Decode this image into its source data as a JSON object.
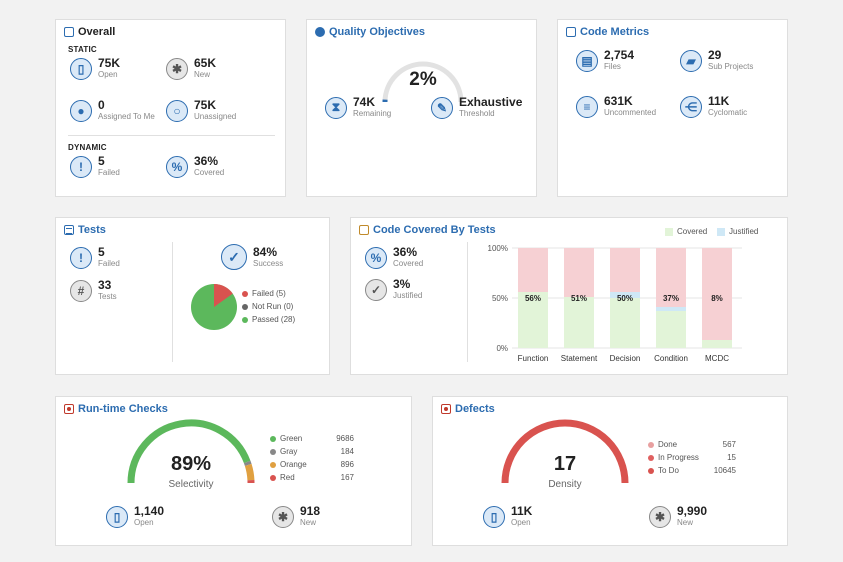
{
  "overall": {
    "title": "Overall",
    "static_label": "STATIC",
    "dynamic_label": "DYNAMIC",
    "open": {
      "value": "75K",
      "label": "Open"
    },
    "new": {
      "value": "65K",
      "label": "New"
    },
    "assigned": {
      "value": "0",
      "label": "Assigned To Me"
    },
    "unassigned": {
      "value": "75K",
      "label": "Unassigned"
    },
    "failed": {
      "value": "5",
      "label": "Failed"
    },
    "covered": {
      "value": "36%",
      "label": "Covered"
    }
  },
  "quality": {
    "title": "Quality Objectives",
    "percent": "2%",
    "progress": 0.02,
    "remaining": {
      "value": "74K",
      "label": "Remaining"
    },
    "threshold": {
      "value": "Exhaustive",
      "label": "Threshold"
    }
  },
  "code_metrics": {
    "title": "Code Metrics",
    "files": {
      "value": "2,754",
      "label": "Files"
    },
    "sub_projects": {
      "value": "29",
      "label": "Sub Projects"
    },
    "uncommented": {
      "value": "631K",
      "label": "Uncommented"
    },
    "cyclomatic": {
      "value": "11K",
      "label": "Cyclomatic"
    }
  },
  "tests": {
    "title": "Tests",
    "failed": {
      "value": "5",
      "label": "Failed"
    },
    "tests": {
      "value": "33",
      "label": "Tests"
    },
    "success": {
      "value": "84%",
      "label": "Success"
    },
    "legend": [
      {
        "label": "Failed (5)",
        "color": "#d9534f"
      },
      {
        "label": "Not Run (0)",
        "color": "#666666"
      },
      {
        "label": "Passed (28)",
        "color": "#5cb85c"
      }
    ]
  },
  "coverage": {
    "title": "Code Covered By Tests",
    "covered": {
      "value": "36%",
      "label": "Covered"
    },
    "justified": {
      "value": "3%",
      "label": "Justified"
    },
    "legend_covered": "Covered",
    "legend_justified": "Justified",
    "colors": {
      "covered": "#e2f4d8",
      "justified": "#cfe8f6",
      "uncovered": "#f6d0d3"
    }
  },
  "chart_data": {
    "type": "bar",
    "categories": [
      "Function",
      "Statement",
      "Decision",
      "Condition",
      "MCDC"
    ],
    "series": [
      {
        "name": "Covered",
        "values": [
          56,
          51,
          50,
          37,
          8
        ]
      },
      {
        "name": "Justified",
        "values": [
          0,
          0,
          6,
          4,
          0
        ]
      }
    ],
    "data_labels": [
      "56%",
      "51%",
      "50%",
      "37%",
      "8%"
    ],
    "yticks": [
      "0%",
      "50%",
      "100%"
    ],
    "ylim": [
      0,
      100
    ],
    "title": "Code Covered By Tests",
    "xlabel": "",
    "ylabel": ""
  },
  "runtime": {
    "title": "Run-time Checks",
    "percent": "89%",
    "label": "Selectivity",
    "legend": [
      {
        "name": "Green",
        "count": "9686",
        "color": "#5cb85c"
      },
      {
        "name": "Gray",
        "count": "184",
        "color": "#888888"
      },
      {
        "name": "Orange",
        "count": "896",
        "color": "#e0a040"
      },
      {
        "name": "Red",
        "count": "167",
        "color": "#d9534f"
      }
    ],
    "open": {
      "value": "1,140",
      "label": "Open"
    },
    "new": {
      "value": "918",
      "label": "New"
    }
  },
  "defects": {
    "title": "Defects",
    "value": "17",
    "label": "Density",
    "legend": [
      {
        "name": "Done",
        "count": "567",
        "color": "#e8a0a0"
      },
      {
        "name": "In Progress",
        "count": "15",
        "color": "#e06060"
      },
      {
        "name": "To Do",
        "count": "10645",
        "color": "#d9534f"
      }
    ],
    "open": {
      "value": "11K",
      "label": "Open"
    },
    "new": {
      "value": "9,990",
      "label": "New"
    }
  }
}
